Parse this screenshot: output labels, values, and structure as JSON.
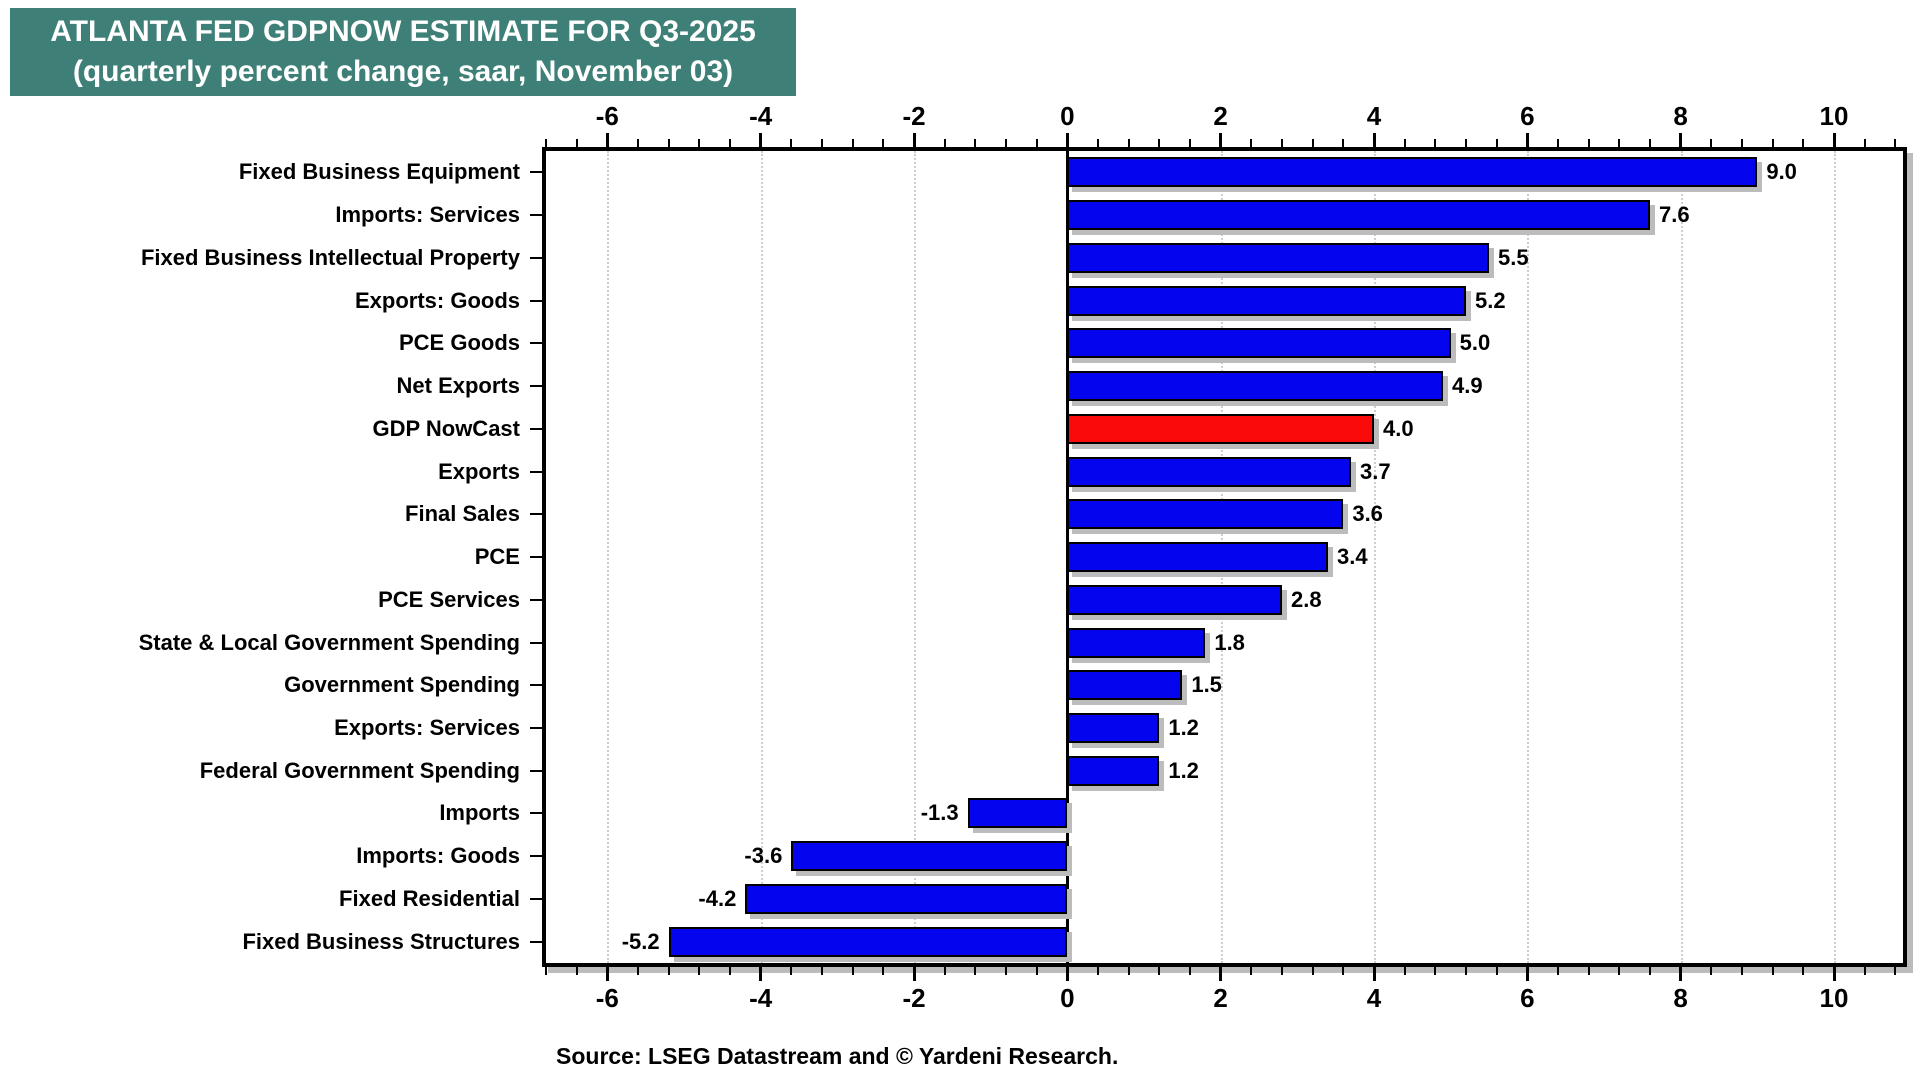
{
  "title": {
    "line1": "ATLANTA FED GDPNOW ESTIMATE FOR Q3-2025",
    "line2": "(quarterly percent change, saar, November 03)"
  },
  "source": "Source: LSEG Datastream and © Yardeni Research.",
  "colors": {
    "title_bg": "#3E8077",
    "title_text": "#FFFFFF",
    "bar_blue": "#0404EE",
    "bar_highlight_red": "#FB0A0A",
    "bar_border": "#000000",
    "grid": "#CDCDCD",
    "shadow": "#BCBCBC",
    "axis": "#000000"
  },
  "chart_data": {
    "type": "bar",
    "orientation": "horizontal",
    "title": "ATLANTA FED GDPNOW ESTIMATE FOR Q3-2025 (quarterly percent change, saar, November 03)",
    "categories": [
      "Fixed Business Equipment",
      "Imports: Services",
      "Fixed Business Intellectual Property",
      "Exports: Goods",
      "PCE Goods",
      "Net Exports",
      "GDP NowCast",
      "Exports",
      "Final Sales",
      "PCE",
      "PCE Services",
      "State & Local Government Spending",
      "Government Spending",
      "Exports: Services",
      "Federal Government Spending",
      "Imports",
      "Imports: Goods",
      "Fixed Residential",
      "Fixed Business Structures"
    ],
    "values": [
      9.0,
      7.6,
      5.5,
      5.2,
      5.0,
      4.9,
      4.0,
      3.7,
      3.6,
      3.4,
      2.8,
      1.8,
      1.5,
      1.2,
      1.2,
      -1.3,
      -3.6,
      -4.2,
      -5.2
    ],
    "value_labels": [
      "9.0",
      "7.6",
      "5.5",
      "5.2",
      "5.0",
      "4.9",
      "4.0",
      "3.7",
      "3.6",
      "3.4",
      "2.8",
      "1.8",
      "1.5",
      "1.2",
      "1.2",
      "-1.3",
      "-3.6",
      "-4.2",
      "-5.2"
    ],
    "highlight_index": 6,
    "highlight_category": "GDP NowCast",
    "xlim": [
      -6.8,
      10.9
    ],
    "x_major_ticks": [
      -6,
      -4,
      -2,
      0,
      2,
      4,
      6,
      8,
      10
    ],
    "x_tick_labels": [
      "-6",
      "-4",
      "-2",
      "0",
      "2",
      "4",
      "6",
      "8",
      "10"
    ],
    "x_minor_step": 0.4,
    "grid": "vertical dotted at major ticks",
    "zero_line": true,
    "legend": "none",
    "xlabel": "",
    "ylabel": ""
  }
}
